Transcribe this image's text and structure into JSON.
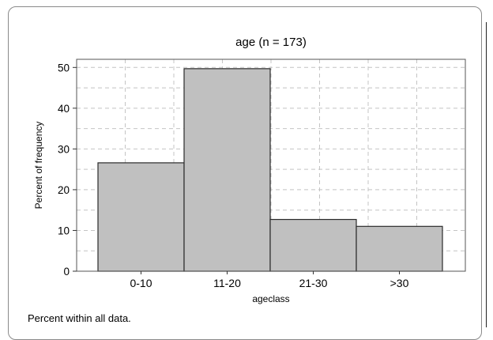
{
  "chart_data": {
    "type": "bar",
    "title": "age (n = 173)",
    "xlabel": "ageclass",
    "ylabel": "Percent of frequency",
    "categories": [
      "0-10",
      "11-20",
      "21-30",
      ">30"
    ],
    "values": [
      26.6,
      49.7,
      12.7,
      11.0
    ],
    "ylim": [
      0,
      52
    ],
    "yticks": [
      0,
      10,
      20,
      30,
      40,
      50
    ],
    "grid": true,
    "bar_color": "#c0c0c0",
    "bar_edge_color": "#2b2b2b"
  },
  "footnote": "Percent within all data."
}
